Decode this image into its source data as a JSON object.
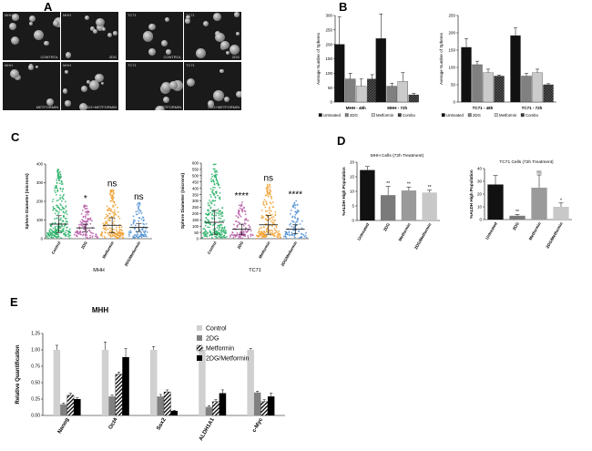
{
  "panel_letters": {
    "a": "A",
    "b": "B",
    "c": "C",
    "d": "D",
    "e": "E"
  },
  "micro_tiles": [
    {
      "cap": "MHH",
      "tag": "CONTROL"
    },
    {
      "cap": "MHH",
      "tag": "2DG"
    },
    {
      "cap": "TC71",
      "tag": "CONTROL"
    },
    {
      "cap": "TC71",
      "tag": "2DG"
    },
    {
      "cap": "MHH",
      "tag": "METFORMIN"
    },
    {
      "cap": "MHH",
      "tag": "2DG+METFORMIN"
    },
    {
      "cap": "TC71",
      "tag": "METFORMIN"
    },
    {
      "cap": "TC71",
      "tag": "2DG+METFORMIN"
    }
  ],
  "colors": {
    "untreated": "#111111",
    "twodg": "#808080",
    "metformin": "#c8c8c8",
    "combo": "#333333",
    "dot_control": "#2fb36b",
    "dot_2dg": "#b55aa6",
    "dot_met": "#f0a030",
    "dot_combo": "#4d8fd0",
    "d_untreated": "#111111",
    "d_2dg": "#7a7a7a",
    "d_met": "#9a9a9a",
    "d_combo": "#c8c8c8",
    "e_control": "#d0d0d0",
    "e_2dg": "#808080",
    "e_combo": "#000000"
  },
  "chart_data": [
    {
      "id": "B-MHH",
      "type": "bar",
      "ylabel": "Average Number of Spheres",
      "ylim": [
        0,
        300
      ],
      "yticks": [
        "0",
        "50",
        "100",
        "150",
        "200",
        "250",
        "300"
      ],
      "categories": [
        "MHH - 48h",
        "MHH - 72h"
      ],
      "series": [
        {
          "name": "Untreated",
          "values": [
            200,
            220
          ],
          "err": [
            95,
            85
          ]
        },
        {
          "name": "2DG",
          "values": [
            80,
            55
          ],
          "err": [
            20,
            10
          ]
        },
        {
          "name": "Metformin",
          "values": [
            55,
            72
          ],
          "err": [
            25,
            30
          ]
        },
        {
          "name": "Combo",
          "values": [
            80,
            25
          ],
          "err": [
            15,
            5
          ]
        }
      ],
      "legend": [
        "Untreated",
        "2DG",
        "Metformin",
        "Combo"
      ]
    },
    {
      "id": "B-TC71",
      "type": "bar",
      "ylabel": "Average Number of Spheres",
      "ylim": [
        0,
        250
      ],
      "yticks": [
        "0",
        "50",
        "100",
        "150",
        "200",
        "250"
      ],
      "categories": [
        "TC71 - 48h",
        "TC71 - 72h"
      ],
      "series": [
        {
          "name": "Untreated",
          "values": [
            158,
            192
          ],
          "err": [
            25,
            22
          ]
        },
        {
          "name": "2DG",
          "values": [
            108,
            75
          ],
          "err": [
            10,
            8
          ]
        },
        {
          "name": "Metformin",
          "values": [
            85,
            85
          ],
          "err": [
            10,
            10
          ]
        },
        {
          "name": "Combo",
          "values": [
            75,
            50
          ],
          "err": [
            3,
            3
          ]
        }
      ],
      "legend": [
        "Untreated",
        "2DG",
        "Metformin",
        "Combo"
      ]
    },
    {
      "id": "C-MHH",
      "type": "scatter",
      "ylabel": "Sphere Diameter (microns)",
      "ylim": [
        0,
        400
      ],
      "yticks": [
        "0",
        "100",
        "200",
        "300",
        "400"
      ],
      "categories": [
        "Control",
        "2DG",
        "Metformin",
        "2DG/Metformin"
      ],
      "means": [
        78,
        58,
        72,
        60
      ],
      "sds": [
        45,
        20,
        40,
        22
      ],
      "maxes": [
        370,
        180,
        260,
        190
      ],
      "annotations": [
        "",
        "*",
        "ns",
        "ns"
      ],
      "xlabel": "MHH"
    },
    {
      "id": "C-TC71",
      "type": "scatter",
      "ylabel": "Sphere Diameter (microns)",
      "ylim": [
        0,
        600
      ],
      "yticks": [
        "0",
        "50",
        "100",
        "150",
        "200",
        "250",
        "300",
        "350",
        "400",
        "450",
        "500",
        "550",
        "600"
      ],
      "categories": [
        "Control",
        "2DG",
        "Metformin",
        "2DG/Metformin"
      ],
      "means": [
        130,
        75,
        110,
        75
      ],
      "sds": [
        95,
        40,
        75,
        35
      ],
      "maxes": [
        590,
        290,
        430,
        300
      ],
      "annotations": [
        "",
        "****",
        "ns",
        "****"
      ],
      "xlabel": "TC71"
    },
    {
      "id": "D-MHH",
      "type": "bar",
      "title": "MHH Cells (72h Treatment)",
      "ylabel": "%ALDH High Population",
      "ylim": [
        0,
        20
      ],
      "yticks": [
        "0",
        "5",
        "10",
        "15",
        "20"
      ],
      "categories": [
        "Untreated",
        "2DG",
        "Metformin",
        "2DG/Metformin"
      ],
      "values": [
        17.3,
        8.7,
        10.3,
        9.6
      ],
      "err": [
        1.2,
        3.0,
        1.2,
        0.8
      ],
      "annotations": [
        "",
        "**",
        "**",
        "**"
      ]
    },
    {
      "id": "D-TC71",
      "type": "bar",
      "title": "TC71 Cells (72h Treatment)",
      "ylabel": "%ALDH High Population",
      "ylim": [
        0,
        40
      ],
      "yticks": [
        "0",
        "10",
        "20",
        "30",
        "40"
      ],
      "categories": [
        "Untreated",
        "2DG",
        "Metformin",
        "2DG/Metformin"
      ],
      "values": [
        27.5,
        3,
        25,
        10
      ],
      "err": [
        7,
        1,
        10,
        3
      ],
      "annotations": [
        "",
        "**",
        "ns",
        "*"
      ]
    },
    {
      "id": "E-MHH",
      "type": "bar",
      "title": "MHH",
      "ylabel": "Relative Quantification",
      "ylim": [
        0,
        1.25
      ],
      "yticks": [
        "0.00",
        "0.25",
        "0.50",
        "0.75",
        "1.00",
        "1.25"
      ],
      "categories": [
        "Nanog",
        "Oct4",
        "Sox2",
        "ALDH1A1",
        "c-Myc"
      ],
      "series": [
        {
          "name": "Control",
          "values": [
            1.0,
            1.0,
            1.0,
            1.0,
            1.0
          ],
          "err": [
            0.07,
            0.12,
            0.05,
            0.03,
            0.02
          ]
        },
        {
          "name": "2DG",
          "values": [
            0.17,
            0.29,
            0.29,
            0.13,
            0.35
          ],
          "err": [
            0.02,
            0.02,
            0.03,
            0.02,
            0.02
          ]
        },
        {
          "name": "Metformin",
          "values": [
            0.31,
            0.63,
            0.36,
            0.21,
            0.21
          ],
          "err": [
            0.03,
            0.03,
            0.03,
            0.03,
            0.03
          ]
        },
        {
          "name": "2DG/Metformin",
          "values": [
            0.25,
            0.89,
            0.07,
            0.34,
            0.29
          ],
          "err": [
            0.02,
            0.13,
            0.01,
            0.05,
            0.05
          ]
        }
      ],
      "legend": [
        "Control",
        "2DG",
        "Metformin",
        "2DG/Metformin"
      ]
    }
  ]
}
